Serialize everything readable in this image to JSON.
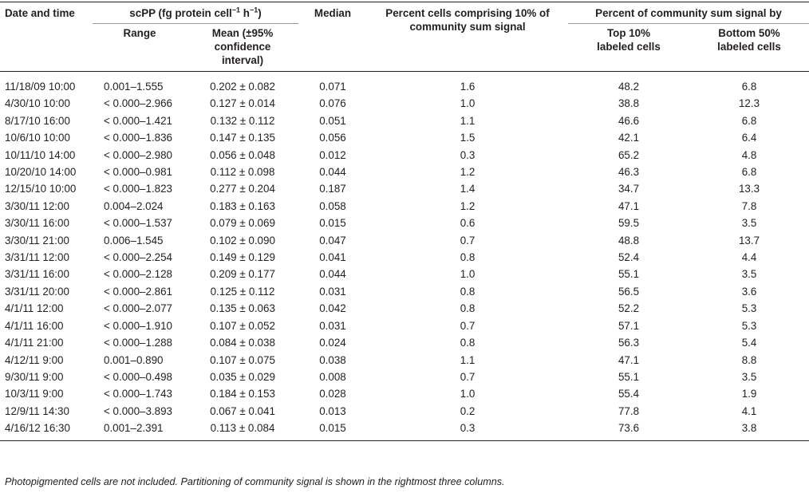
{
  "headers": {
    "date": "Date and time",
    "scpp_group": "scPP (fg protein cell",
    "scpp_sup1": "−1",
    "scpp_mid": " h",
    "scpp_sup2": "−1",
    "scpp_close": ")",
    "range": "Range",
    "mean": "Mean (±95% confidence interval)",
    "median": "Median",
    "percent_cells": "Percent cells comprising 10% of community sum signal",
    "community_group": "Percent of community sum signal by",
    "top10": "Top 10% labeled cells",
    "bottom50": "Bottom 50% labeled cells"
  },
  "rows": [
    {
      "date": "11/18/09 10:00",
      "range": "0.001–1.555",
      "mean": "0.202 ± 0.082",
      "median": "0.071",
      "pct_cells": "1.6",
      "top10": "48.2",
      "bottom50": "6.8"
    },
    {
      "date": "4/30/10 10:00",
      "range": "< 0.000–2.966",
      "mean": "0.127 ± 0.014",
      "median": "0.076",
      "pct_cells": "1.0",
      "top10": "38.8",
      "bottom50": "12.3"
    },
    {
      "date": "8/17/10 16:00",
      "range": "< 0.000–1.421",
      "mean": "0.132 ± 0.112",
      "median": "0.051",
      "pct_cells": "1.1",
      "top10": "46.6",
      "bottom50": "6.8"
    },
    {
      "date": "10/6/10 10:00",
      "range": "< 0.000–1.836",
      "mean": "0.147 ± 0.135",
      "median": "0.056",
      "pct_cells": "1.5",
      "top10": "42.1",
      "bottom50": "6.4"
    },
    {
      "date": "10/11/10 14:00",
      "range": "< 0.000–2.980",
      "mean": "0.056 ± 0.048",
      "median": "0.012",
      "pct_cells": "0.3",
      "top10": "65.2",
      "bottom50": "4.8"
    },
    {
      "date": "10/20/10 14:00",
      "range": "< 0.000–0.981",
      "mean": "0.112 ± 0.098",
      "median": "0.044",
      "pct_cells": "1.2",
      "top10": "46.3",
      "bottom50": "6.8"
    },
    {
      "date": "12/15/10 10:00",
      "range": "< 0.000–1.823",
      "mean": "0.277 ± 0.204",
      "median": "0.187",
      "pct_cells": "1.4",
      "top10": "34.7",
      "bottom50": "13.3"
    },
    {
      "date": "3/30/11 12:00",
      "range": "0.004–2.024",
      "mean": "0.183 ± 0.163",
      "median": "0.058",
      "pct_cells": "1.2",
      "top10": "47.1",
      "bottom50": "7.8"
    },
    {
      "date": "3/30/11 16:00",
      "range": "< 0.000–1.537",
      "mean": "0.079 ± 0.069",
      "median": "0.015",
      "pct_cells": "0.6",
      "top10": "59.5",
      "bottom50": "3.5"
    },
    {
      "date": "3/30/11 21:00",
      "range": "0.006–1.545",
      "mean": "0.102 ± 0.090",
      "median": "0.047",
      "pct_cells": "0.7",
      "top10": "48.8",
      "bottom50": "13.7"
    },
    {
      "date": "3/31/11 12:00",
      "range": "< 0.000–2.254",
      "mean": "0.149 ± 0.129",
      "median": "0.041",
      "pct_cells": "0.8",
      "top10": "52.4",
      "bottom50": "4.4"
    },
    {
      "date": "3/31/11 16:00",
      "range": "< 0.000–2.128",
      "mean": "0.209 ± 0.177",
      "median": "0.044",
      "pct_cells": "1.0",
      "top10": "55.1",
      "bottom50": "3.5"
    },
    {
      "date": "3/31/11 20:00",
      "range": "< 0.000–2.861",
      "mean": "0.125 ± 0.112",
      "median": "0.031",
      "pct_cells": "0.8",
      "top10": "56.5",
      "bottom50": "3.6"
    },
    {
      "date": "4/1/11 12:00",
      "range": "< 0.000–2.077",
      "mean": "0.135 ± 0.063",
      "median": "0.042",
      "pct_cells": "0.8",
      "top10": "52.2",
      "bottom50": "5.3"
    },
    {
      "date": "4/1/11 16:00",
      "range": "< 0.000–1.910",
      "mean": "0.107 ± 0.052",
      "median": "0.031",
      "pct_cells": "0.7",
      "top10": "57.1",
      "bottom50": "5.3"
    },
    {
      "date": "4/1/11 21:00",
      "range": "< 0.000–1.288",
      "mean": "0.084 ± 0.038",
      "median": "0.024",
      "pct_cells": "0.8",
      "top10": "56.3",
      "bottom50": "5.4"
    },
    {
      "date": "4/12/11 9:00",
      "range": "0.001–0.890",
      "mean": "0.107 ± 0.075",
      "median": "0.038",
      "pct_cells": "1.1",
      "top10": "47.1",
      "bottom50": "8.8"
    },
    {
      "date": "9/30/11 9:00",
      "range": "< 0.000–0.498",
      "mean": "0.035 ± 0.029",
      "median": "0.008",
      "pct_cells": "0.7",
      "top10": "55.1",
      "bottom50": "3.5"
    },
    {
      "date": "10/3/11 9:00",
      "range": "< 0.000–1.743",
      "mean": "0.184 ± 0.153",
      "median": "0.028",
      "pct_cells": "1.0",
      "top10": "55.4",
      "bottom50": "1.9"
    },
    {
      "date": "12/9/11 14:30",
      "range": "< 0.000–3.893",
      "mean": "0.067 ± 0.041",
      "median": "0.013",
      "pct_cells": "0.2",
      "top10": "77.8",
      "bottom50": "4.1"
    },
    {
      "date": "4/16/12 16:30",
      "range": "0.001–2.391",
      "mean": "0.113 ± 0.084",
      "median": "0.015",
      "pct_cells": "0.3",
      "top10": "73.6",
      "bottom50": "3.8"
    }
  ],
  "footnote": "Photopigmented cells are not included. Partitioning of community signal is shown in the rightmost three columns."
}
